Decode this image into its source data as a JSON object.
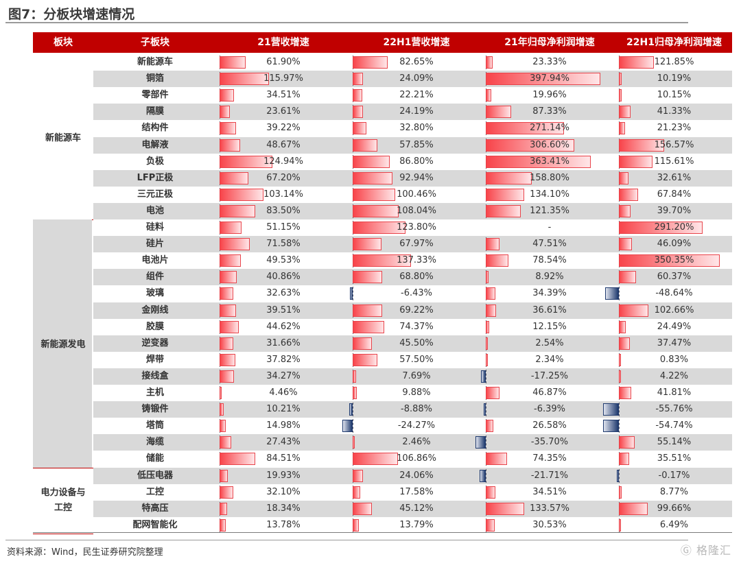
{
  "title": "图7：分板块增速情况",
  "source": "资料来源：Wind，民生证券研究院整理",
  "watermark": "格隆汇",
  "headers": [
    "板块",
    "子板块",
    "21营收增速",
    "22H1营收增速",
    "21年归母净利润增速",
    "22H1归母净利润增速"
  ],
  "colors": {
    "header": "#c00000",
    "positive": "#f8444a",
    "negative": "#1f3a6e",
    "shade": "#d9d9d9"
  },
  "groups": [
    {
      "label": "新能源车",
      "start": 0,
      "count": 10
    },
    {
      "label": "新能源发电",
      "start": 10,
      "count": 15
    },
    {
      "label": "电力设备与工控",
      "start": 25,
      "count": 4
    }
  ],
  "chart_data": {
    "type": "table",
    "columns": [
      "21营收增速",
      "22H1营收增速",
      "21年归母净利润增速",
      "22H1归母净利润增速"
    ],
    "rows": [
      {
        "name": "新能源车",
        "display": [
          "61.90%",
          "82.65%",
          "23.33%",
          "121.85%"
        ],
        "values": [
          61.9,
          82.65,
          23.33,
          121.85
        ]
      },
      {
        "name": "铜箔",
        "display": [
          "115.97%",
          "24.09%",
          "397.94%",
          "10.19%"
        ],
        "values": [
          115.97,
          24.09,
          397.94,
          10.19
        ]
      },
      {
        "name": "零部件",
        "display": [
          "34.51%",
          "22.21%",
          "19.96%",
          "10.15%"
        ],
        "values": [
          34.51,
          22.21,
          19.96,
          10.15
        ]
      },
      {
        "name": "隔膜",
        "display": [
          "23.61%",
          "24.19%",
          "87.33%",
          "41.33%"
        ],
        "values": [
          23.61,
          24.19,
          87.33,
          41.33
        ]
      },
      {
        "name": "结构件",
        "display": [
          "39.22%",
          "32.80%",
          "271.14%",
          "21.23%"
        ],
        "values": [
          39.22,
          32.8,
          271.14,
          21.23
        ]
      },
      {
        "name": "电解液",
        "display": [
          "48.67%",
          "57.85%",
          "306.60%",
          "156.57%"
        ],
        "values": [
          48.67,
          57.85,
          306.6,
          156.57
        ]
      },
      {
        "name": "负极",
        "display": [
          "124.94%",
          "86.80%",
          "363.41%",
          "115.61%"
        ],
        "values": [
          124.94,
          86.8,
          363.41,
          115.61
        ]
      },
      {
        "name": "LFP正极",
        "display": [
          "67.20%",
          "92.94%",
          "158.80%",
          "32.61%"
        ],
        "values": [
          67.2,
          92.94,
          158.8,
          32.61
        ]
      },
      {
        "name": "三元正极",
        "display": [
          "103.14%",
          "100.46%",
          "134.10%",
          "67.84%"
        ],
        "values": [
          103.14,
          100.46,
          134.1,
          67.84
        ]
      },
      {
        "name": "电池",
        "display": [
          "83.50%",
          "108.04%",
          "121.35%",
          "39.70%"
        ],
        "values": [
          83.5,
          108.04,
          121.35,
          39.7
        ]
      },
      {
        "name": "硅料",
        "display": [
          "51.15%",
          "123.80%",
          "-",
          "291.20%"
        ],
        "values": [
          51.15,
          123.8,
          null,
          291.2
        ]
      },
      {
        "name": "硅片",
        "display": [
          "71.58%",
          "67.97%",
          "47.51%",
          "46.09%"
        ],
        "values": [
          71.58,
          67.97,
          47.51,
          46.09
        ]
      },
      {
        "name": "电池片",
        "display": [
          "49.53%",
          "137.33%",
          "78.54%",
          "350.35%"
        ],
        "values": [
          49.53,
          137.33,
          78.54,
          350.35
        ]
      },
      {
        "name": "组件",
        "display": [
          "40.86%",
          "68.80%",
          "8.92%",
          "60.37%"
        ],
        "values": [
          40.86,
          68.8,
          8.92,
          60.37
        ]
      },
      {
        "name": "玻璃",
        "display": [
          "32.63%",
          "-6.43%",
          "34.39%",
          "-48.64%"
        ],
        "values": [
          32.63,
          -6.43,
          34.39,
          -48.64
        ]
      },
      {
        "name": "金刚线",
        "display": [
          "39.51%",
          "69.22%",
          "36.61%",
          "102.66%"
        ],
        "values": [
          39.51,
          69.22,
          36.61,
          102.66
        ]
      },
      {
        "name": "胶膜",
        "display": [
          "44.62%",
          "74.37%",
          "12.15%",
          "24.49%"
        ],
        "values": [
          44.62,
          74.37,
          12.15,
          24.49
        ]
      },
      {
        "name": "逆变器",
        "display": [
          "31.66%",
          "45.50%",
          "2.54%",
          "37.47%"
        ],
        "values": [
          31.66,
          45.5,
          2.54,
          37.47
        ]
      },
      {
        "name": "焊带",
        "display": [
          "37.82%",
          "57.50%",
          "2.34%",
          "0.83%"
        ],
        "values": [
          37.82,
          57.5,
          2.34,
          0.83
        ]
      },
      {
        "name": "接线盒",
        "display": [
          "34.27%",
          "7.69%",
          "-17.25%",
          "4.22%"
        ],
        "values": [
          34.27,
          7.69,
          -17.25,
          4.22
        ]
      },
      {
        "name": "主机",
        "display": [
          "4.46%",
          "9.88%",
          "46.87%",
          "41.81%"
        ],
        "values": [
          4.46,
          9.88,
          46.87,
          41.81
        ]
      },
      {
        "name": "铸锻件",
        "display": [
          "10.21%",
          "-8.88%",
          "-6.39%",
          "-55.76%"
        ],
        "values": [
          10.21,
          -8.88,
          -6.39,
          -55.76
        ]
      },
      {
        "name": "塔筒",
        "display": [
          "14.98%",
          "-24.27%",
          "26.58%",
          "-54.74%"
        ],
        "values": [
          14.98,
          -24.27,
          26.58,
          -54.74
        ]
      },
      {
        "name": "海缆",
        "display": [
          "27.43%",
          "2.46%",
          "-35.70%",
          "55.14%"
        ],
        "values": [
          27.43,
          2.46,
          -35.7,
          55.14
        ]
      },
      {
        "name": "储能",
        "display": [
          "84.51%",
          "106.86%",
          "74.35%",
          "35.51%"
        ],
        "values": [
          84.51,
          106.86,
          74.35,
          35.51
        ]
      },
      {
        "name": "低压电器",
        "display": [
          "19.93%",
          "24.06%",
          "-21.71%",
          "-0.17%"
        ],
        "values": [
          19.93,
          24.06,
          -21.71,
          -0.17
        ]
      },
      {
        "name": "工控",
        "display": [
          "32.10%",
          "17.58%",
          "34.51%",
          "8.77%"
        ],
        "values": [
          32.1,
          17.58,
          34.51,
          8.77
        ]
      },
      {
        "name": "特高压",
        "display": [
          "18.34%",
          "45.12%",
          "133.57%",
          "99.66%"
        ],
        "values": [
          18.34,
          45.12,
          133.57,
          99.66
        ]
      },
      {
        "name": "配网智能化",
        "display": [
          "13.78%",
          "13.79%",
          "30.53%",
          "6.49%"
        ],
        "values": [
          13.78,
          13.79,
          30.53,
          6.49
        ]
      }
    ]
  }
}
